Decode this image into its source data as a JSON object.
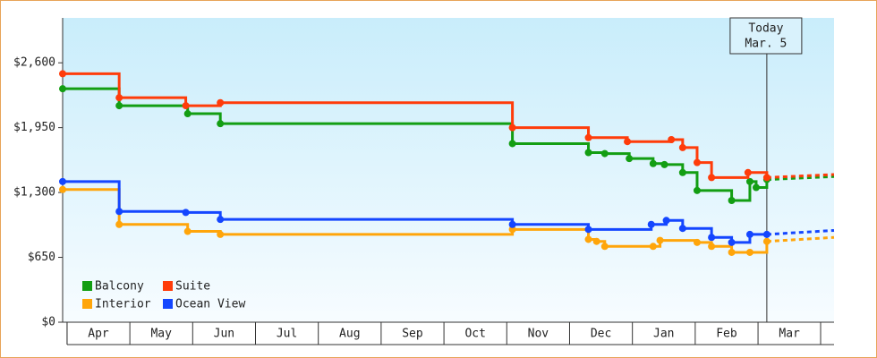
{
  "chart_data": {
    "type": "step-line",
    "xlim": [
      -0.07,
      12.21
    ],
    "xticks": [
      {
        "value": 0.5,
        "label": "Apr"
      },
      {
        "value": 1.5,
        "label": "May"
      },
      {
        "value": 2.5,
        "label": "Jun"
      },
      {
        "value": 3.5,
        "label": "Jul"
      },
      {
        "value": 4.5,
        "label": "Aug"
      },
      {
        "value": 5.5,
        "label": "Sep"
      },
      {
        "value": 6.5,
        "label": "Oct"
      },
      {
        "value": 7.5,
        "label": "Nov"
      },
      {
        "value": 8.5,
        "label": "Dec"
      },
      {
        "value": 9.5,
        "label": "Jan"
      },
      {
        "value": 10.5,
        "label": "Feb"
      },
      {
        "value": 11.5,
        "label": "Mar"
      }
    ],
    "ylim": [
      0,
      3050
    ],
    "yticks": [
      {
        "value": 0,
        "label": "$0"
      },
      {
        "value": 650,
        "label": "$650"
      },
      {
        "value": 1300,
        "label": "$1,300"
      },
      {
        "value": 1950,
        "label": "$1,950"
      },
      {
        "value": 2600,
        "label": "$2,600"
      }
    ],
    "grid": false,
    "legend": "lower left",
    "annotation": {
      "x": 11.14,
      "lines": [
        "Today",
        "Mar. 5"
      ]
    },
    "series": [
      {
        "name": "Balcony",
        "color": "#139e13",
        "x": [
          -0.07,
          0.83,
          1.92,
          2.44,
          7.09,
          8.3,
          8.56,
          8.95,
          9.33,
          9.51,
          9.8,
          10.03,
          10.58,
          10.87,
          10.97,
          11.14
        ],
        "values": [
          2340,
          2170,
          2090,
          1990,
          1790,
          1700,
          1690,
          1640,
          1590,
          1580,
          1500,
          1320,
          1220,
          1410,
          1350,
          1430
        ],
        "forecast": 1460
      },
      {
        "name": "Suite",
        "color": "#ff3c0a",
        "x": [
          -0.07,
          0.83,
          1.89,
          2.44,
          7.09,
          8.3,
          8.92,
          9.62,
          9.8,
          10.03,
          10.26,
          10.84,
          11.14
        ],
        "values": [
          2490,
          2250,
          2170,
          2200,
          1950,
          1850,
          1810,
          1830,
          1750,
          1600,
          1450,
          1500,
          1450
        ],
        "forecast": 1480
      },
      {
        "name": "Interior",
        "color": "#ffa50a",
        "x": [
          -0.07,
          0.83,
          1.92,
          2.44,
          7.09,
          8.3,
          8.43,
          8.56,
          9.33,
          9.44,
          10.03,
          10.26,
          10.58,
          10.87,
          11.14
        ],
        "values": [
          1330,
          980,
          910,
          880,
          930,
          830,
          810,
          760,
          760,
          820,
          800,
          760,
          700,
          700,
          810
        ],
        "forecast": 850
      },
      {
        "name": "Ocean View",
        "color": "#1446ff",
        "x": [
          -0.07,
          0.83,
          1.89,
          2.44,
          7.09,
          8.3,
          9.3,
          9.54,
          9.8,
          10.26,
          10.58,
          10.87,
          11.14
        ],
        "values": [
          1410,
          1110,
          1100,
          1030,
          980,
          930,
          980,
          1020,
          940,
          850,
          800,
          880,
          880
        ],
        "forecast": 920
      }
    ]
  }
}
